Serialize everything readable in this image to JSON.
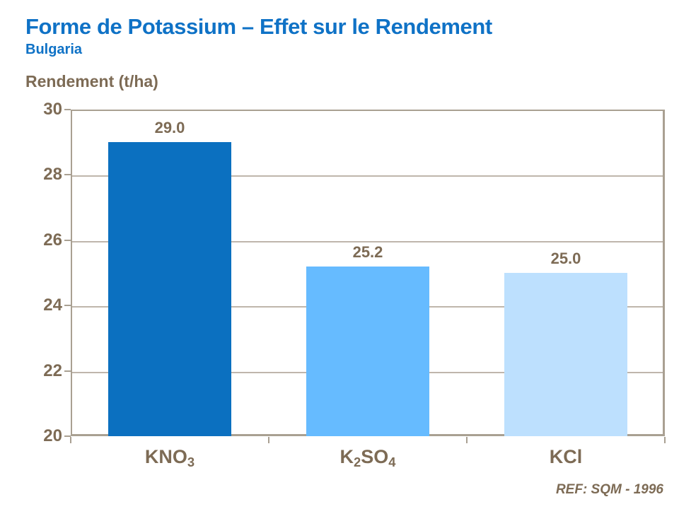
{
  "chart_data": {
    "type": "bar",
    "title": "Forme de Potassium – Effet sur le Rendement",
    "subtitle": "Bulgaria",
    "ylabel": "Rendement (t/ha)",
    "categories": [
      "KNO3",
      "K2SO4",
      "KCl"
    ],
    "category_labels": [
      {
        "parts": [
          {
            "text": "KNO"
          },
          {
            "text": "3",
            "sub": true
          }
        ]
      },
      {
        "parts": [
          {
            "text": "K"
          },
          {
            "text": "2",
            "sub": true
          },
          {
            "text": "SO"
          },
          {
            "text": "4",
            "sub": true
          }
        ]
      },
      {
        "parts": [
          {
            "text": "KCl"
          }
        ]
      }
    ],
    "values": [
      29.0,
      25.2,
      25.0
    ],
    "value_labels": [
      "29.0",
      "25.2",
      "25.0"
    ],
    "bar_colors": [
      "#0B70C0",
      "#66BBFF",
      "#BDE0FE"
    ],
    "yticks": [
      30,
      28,
      26,
      24,
      22,
      20
    ],
    "ylim": [
      20,
      30
    ],
    "grid": true,
    "legend": "none",
    "ref": "REF: SQM - 1996"
  },
  "colors": {
    "title_blue": "#0F72C6",
    "text_brown": "#7D6B55",
    "axis_line": "#A9A092",
    "gridline": "#BFB6AC"
  }
}
